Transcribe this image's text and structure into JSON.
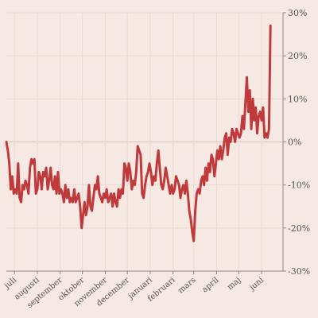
{
  "chart_data": {
    "type": "line",
    "title": "",
    "xlabel": "",
    "ylabel": "",
    "y_axis_position": "right",
    "grid": true,
    "ylim": [
      -30,
      30
    ],
    "yticks": [
      -30,
      -20,
      -10,
      0,
      10,
      20,
      30
    ],
    "ytick_labels": [
      "-30%",
      "-20%",
      "-10%",
      "0%",
      "10%",
      "20%",
      "30%"
    ],
    "x_domain": [
      "2018-07-01",
      "2019-06-30"
    ],
    "x_ticks": [
      {
        "date": "2018-07-01",
        "label": "juli"
      },
      {
        "date": "2018-08-01",
        "label": "augusti"
      },
      {
        "date": "2018-09-01",
        "label": "september"
      },
      {
        "date": "2018-10-01",
        "label": "oktober"
      },
      {
        "date": "2018-11-01",
        "label": "november"
      },
      {
        "date": "2018-12-01",
        "label": "december"
      },
      {
        "date": "2019-01-01",
        "label": "januari"
      },
      {
        "date": "2019-02-01",
        "label": "februari"
      },
      {
        "date": "2019-03-01",
        "label": "mars"
      },
      {
        "date": "2019-04-01",
        "label": "april"
      },
      {
        "date": "2019-05-01",
        "label": "maj"
      },
      {
        "date": "2019-06-01",
        "label": "juni"
      }
    ],
    "colors": {
      "line": "#c0393b"
    },
    "series": [
      {
        "values": [
          [
            "2018-06-20",
            0
          ],
          [
            "2018-06-22",
            -2
          ],
          [
            "2018-06-24",
            -5
          ],
          [
            "2018-06-26",
            -11
          ],
          [
            "2018-06-28",
            -8
          ],
          [
            "2018-06-30",
            -12
          ],
          [
            "2018-07-02",
            -11
          ],
          [
            "2018-07-04",
            -12
          ],
          [
            "2018-07-06",
            -5
          ],
          [
            "2018-07-08",
            -13
          ],
          [
            "2018-07-10",
            -14
          ],
          [
            "2018-07-12",
            -10
          ],
          [
            "2018-07-14",
            -11
          ],
          [
            "2018-07-16",
            -9
          ],
          [
            "2018-07-18",
            -10
          ],
          [
            "2018-07-20",
            -12
          ],
          [
            "2018-07-22",
            -6
          ],
          [
            "2018-07-24",
            -4
          ],
          [
            "2018-07-26",
            -5
          ],
          [
            "2018-07-28",
            -4
          ],
          [
            "2018-07-30",
            -12
          ],
          [
            "2018-08-01",
            -11
          ],
          [
            "2018-08-03",
            -7
          ],
          [
            "2018-08-05",
            -8
          ],
          [
            "2018-08-07",
            -11
          ],
          [
            "2018-08-09",
            -7
          ],
          [
            "2018-08-11",
            -8
          ],
          [
            "2018-08-13",
            -6
          ],
          [
            "2018-08-15",
            -11
          ],
          [
            "2018-08-17",
            -9
          ],
          [
            "2018-08-19",
            -6
          ],
          [
            "2018-08-21",
            -10
          ],
          [
            "2018-08-23",
            -11
          ],
          [
            "2018-08-25",
            -8
          ],
          [
            "2018-08-27",
            -12
          ],
          [
            "2018-08-29",
            -7
          ],
          [
            "2018-08-31",
            -12
          ],
          [
            "2018-09-02",
            -11
          ],
          [
            "2018-09-04",
            -12
          ],
          [
            "2018-09-06",
            -14
          ],
          [
            "2018-09-08",
            -10
          ],
          [
            "2018-09-10",
            -13
          ],
          [
            "2018-09-12",
            -11
          ],
          [
            "2018-09-14",
            -14
          ],
          [
            "2018-09-16",
            -13
          ],
          [
            "2018-09-18",
            -14
          ],
          [
            "2018-09-20",
            -11
          ],
          [
            "2018-09-22",
            -14
          ],
          [
            "2018-09-24",
            -13
          ],
          [
            "2018-09-26",
            -12
          ],
          [
            "2018-09-28",
            -15
          ],
          [
            "2018-09-30",
            -20
          ],
          [
            "2018-10-02",
            -17
          ],
          [
            "2018-10-04",
            -14
          ],
          [
            "2018-10-06",
            -17
          ],
          [
            "2018-10-08",
            -15
          ],
          [
            "2018-10-10",
            -10
          ],
          [
            "2018-10-12",
            -15
          ],
          [
            "2018-10-14",
            -16
          ],
          [
            "2018-10-16",
            -13
          ],
          [
            "2018-10-18",
            -10
          ],
          [
            "2018-10-20",
            -11
          ],
          [
            "2018-10-22",
            -8
          ],
          [
            "2018-10-24",
            -12
          ],
          [
            "2018-10-26",
            -13
          ],
          [
            "2018-10-28",
            -14
          ],
          [
            "2018-10-30",
            -12
          ],
          [
            "2018-11-01",
            -13
          ],
          [
            "2018-11-03",
            -11
          ],
          [
            "2018-11-05",
            -14
          ],
          [
            "2018-11-07",
            -13
          ],
          [
            "2018-11-09",
            -12
          ],
          [
            "2018-11-11",
            -15
          ],
          [
            "2018-11-13",
            -12
          ],
          [
            "2018-11-15",
            -14
          ],
          [
            "2018-11-17",
            -15
          ],
          [
            "2018-11-19",
            -11
          ],
          [
            "2018-11-21",
            -13
          ],
          [
            "2018-11-23",
            -11
          ],
          [
            "2018-11-25",
            -12
          ],
          [
            "2018-11-27",
            -5
          ],
          [
            "2018-11-29",
            -6
          ],
          [
            "2018-12-01",
            -9
          ],
          [
            "2018-12-03",
            -5
          ],
          [
            "2018-12-05",
            -7
          ],
          [
            "2018-12-07",
            -11
          ],
          [
            "2018-12-09",
            -9
          ],
          [
            "2018-12-11",
            -10
          ],
          [
            "2018-12-13",
            -7
          ],
          [
            "2018-12-15",
            -1
          ],
          [
            "2018-12-17",
            -2
          ],
          [
            "2018-12-19",
            -3
          ],
          [
            "2018-12-21",
            -12
          ],
          [
            "2018-12-23",
            -13
          ],
          [
            "2018-12-25",
            -10
          ],
          [
            "2018-12-27",
            -8
          ],
          [
            "2018-12-29",
            -7
          ],
          [
            "2018-12-31",
            -5
          ],
          [
            "2019-01-02",
            -7
          ],
          [
            "2019-01-04",
            -10
          ],
          [
            "2019-01-06",
            -8
          ],
          [
            "2019-01-08",
            -9
          ],
          [
            "2019-01-10",
            -5
          ],
          [
            "2019-01-12",
            -2
          ],
          [
            "2019-01-14",
            -6
          ],
          [
            "2019-01-16",
            -10
          ],
          [
            "2019-01-18",
            -11
          ],
          [
            "2019-01-20",
            -9
          ],
          [
            "2019-01-22",
            -6
          ],
          [
            "2019-01-24",
            -8
          ],
          [
            "2019-01-26",
            -10
          ],
          [
            "2019-01-28",
            -12
          ],
          [
            "2019-01-30",
            -10
          ],
          [
            "2019-02-01",
            -12
          ],
          [
            "2019-02-03",
            -11
          ],
          [
            "2019-02-05",
            -8
          ],
          [
            "2019-02-07",
            -9
          ],
          [
            "2019-02-09",
            -10
          ],
          [
            "2019-02-11",
            -13
          ],
          [
            "2019-02-13",
            -11
          ],
          [
            "2019-02-15",
            -10
          ],
          [
            "2019-02-17",
            -12
          ],
          [
            "2019-02-19",
            -9
          ],
          [
            "2019-02-21",
            -12
          ],
          [
            "2019-02-23",
            -16
          ],
          [
            "2019-02-25",
            -18
          ],
          [
            "2019-02-27",
            -21
          ],
          [
            "2019-03-01",
            -23
          ],
          [
            "2019-03-03",
            -16
          ],
          [
            "2019-03-05",
            -12
          ],
          [
            "2019-03-07",
            -11
          ],
          [
            "2019-03-09",
            -12
          ],
          [
            "2019-03-11",
            -9
          ],
          [
            "2019-03-13",
            -8
          ],
          [
            "2019-03-15",
            -10
          ],
          [
            "2019-03-17",
            -6
          ],
          [
            "2019-03-19",
            -9
          ],
          [
            "2019-03-21",
            -5
          ],
          [
            "2019-03-23",
            -7
          ],
          [
            "2019-03-25",
            -3
          ],
          [
            "2019-03-27",
            -4
          ],
          [
            "2019-03-29",
            -8
          ],
          [
            "2019-03-31",
            -5
          ],
          [
            "2019-04-02",
            -2
          ],
          [
            "2019-04-04",
            -4
          ],
          [
            "2019-04-06",
            -1
          ],
          [
            "2019-04-08",
            -4
          ],
          [
            "2019-04-10",
            -2
          ],
          [
            "2019-04-12",
            1
          ],
          [
            "2019-04-14",
            2
          ],
          [
            "2019-04-16",
            -3
          ],
          [
            "2019-04-18",
            1
          ],
          [
            "2019-04-20",
            0
          ],
          [
            "2019-04-22",
            3
          ],
          [
            "2019-04-24",
            2
          ],
          [
            "2019-04-26",
            0
          ],
          [
            "2019-04-28",
            3
          ],
          [
            "2019-04-30",
            2
          ],
          [
            "2019-05-02",
            1
          ],
          [
            "2019-05-04",
            2
          ],
          [
            "2019-05-06",
            6
          ],
          [
            "2019-05-08",
            3
          ],
          [
            "2019-05-10",
            9
          ],
          [
            "2019-05-12",
            15
          ],
          [
            "2019-05-14",
            7
          ],
          [
            "2019-05-16",
            12
          ],
          [
            "2019-05-18",
            3
          ],
          [
            "2019-05-20",
            10
          ],
          [
            "2019-05-22",
            5
          ],
          [
            "2019-05-24",
            8
          ],
          [
            "2019-05-26",
            2
          ],
          [
            "2019-05-28",
            6
          ],
          [
            "2019-05-30",
            7
          ],
          [
            "2019-06-01",
            5
          ],
          [
            "2019-06-03",
            8
          ],
          [
            "2019-06-05",
            1
          ],
          [
            "2019-06-07",
            2
          ],
          [
            "2019-06-09",
            1
          ],
          [
            "2019-06-11",
            3
          ],
          [
            "2019-06-13",
            27
          ]
        ]
      }
    ]
  }
}
